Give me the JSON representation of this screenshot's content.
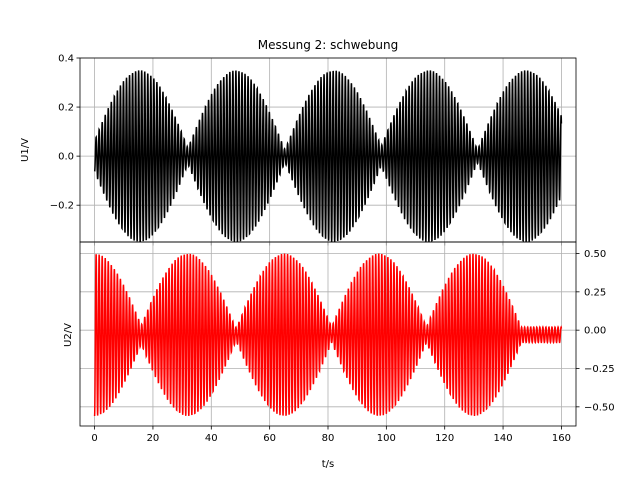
{
  "chart_data": [
    {
      "type": "line",
      "panel": "top",
      "title": "Messung 2: schwebung",
      "ylabel": "U1/V",
      "xlim": [
        -5,
        165
      ],
      "ylim": [
        -0.35,
        0.4
      ],
      "xticks": [
        0,
        20,
        40,
        60,
        80,
        100,
        120,
        140,
        160
      ],
      "yticks": [
        -0.2,
        0.0,
        0.2,
        0.4
      ],
      "ytick_labels": [
        "−0.2",
        "0.0",
        "0.2",
        "0.4"
      ],
      "yaxis_side": "left",
      "xtick_labels_visible": false,
      "grid": true,
      "series": [
        {
          "color": "#000000",
          "t_range": [
            0,
            160
          ],
          "offset": 0.0,
          "carrier_cycles_per_unit": 0.96,
          "envelope_amplitude": 0.35,
          "envelope_minimum": 0.03,
          "envelope_peaks_t": [
            15.5,
            48.5,
            82,
            114.5,
            148
          ]
        }
      ]
    },
    {
      "type": "line",
      "panel": "bottom",
      "xlabel": "t/s",
      "ylabel": "U2/V",
      "xlim": [
        -5,
        165
      ],
      "ylim": [
        -0.625,
        0.575
      ],
      "xticks": [
        0,
        20,
        40,
        60,
        80,
        100,
        120,
        140,
        160
      ],
      "xtick_labels": [
        "0",
        "20",
        "40",
        "60",
        "80",
        "100",
        "120",
        "140",
        "160"
      ],
      "yticks": [
        -0.5,
        -0.25,
        0.0,
        0.25,
        0.5
      ],
      "ytick_labels": [
        "−0.50",
        "−0.25",
        "0.00",
        "0.25",
        "0.50"
      ],
      "yaxis_side": "right",
      "grid": true,
      "series": [
        {
          "color": "#ff0000",
          "t_range": [
            0,
            160
          ],
          "offset": -0.03,
          "carrier_cycles_per_unit": 0.96,
          "envelope_amplitude": 0.53,
          "envelope_minimum": 0.05,
          "envelope_peaks_t": [
            0,
            32,
            65,
            97.5,
            130
          ]
        }
      ]
    }
  ]
}
